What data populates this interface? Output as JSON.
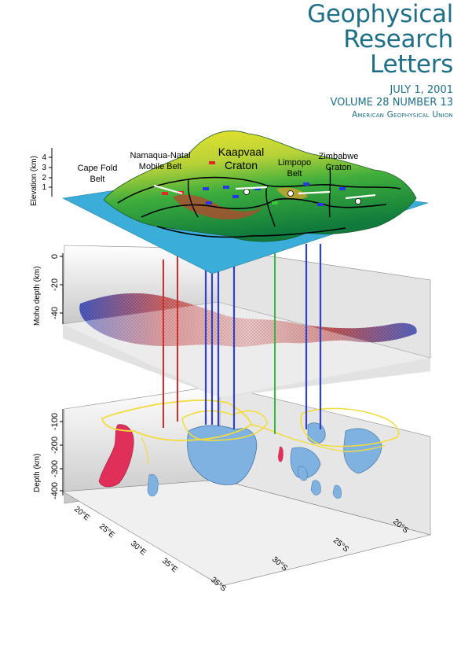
{
  "journal": {
    "title_lines": [
      "Geophysical",
      "Research",
      "Letters"
    ],
    "date": "JULY 1, 2001",
    "volume": "VOLUME 28  NUMBER 13",
    "publisher": "American Geophysical Union"
  },
  "figure": {
    "regions": {
      "cape_fold": [
        "Cape Fold",
        "Belt"
      ],
      "namaqua": [
        "Namaqua-Natal",
        "Mobile Belt"
      ],
      "kaapvaal": [
        "Kaapvaal",
        "Craton"
      ],
      "limpopo": [
        "Limpopo",
        "Belt"
      ],
      "zimbabwe": [
        "Zimbabwe",
        "Craton"
      ]
    },
    "elevation_panel": {
      "axis_label": "Elevation (km)",
      "ticks": [
        "1",
        "2",
        "3",
        "4"
      ]
    },
    "moho_panel": {
      "axis_label": "Moho depth (km)",
      "ticks": [
        "0",
        "-20",
        "-40"
      ]
    },
    "tomography_panel": {
      "axis_label": "Depth (km)",
      "ticks": [
        "-100",
        "-200",
        "-300",
        "-400"
      ]
    },
    "lon_ticks": [
      "20°E",
      "25°E",
      "30°E",
      "35°E"
    ],
    "lat_ticks": [
      "35°S",
      "30°S",
      "25°S",
      "20°S"
    ],
    "colors": {
      "sea": "#3aaed8",
      "anomaly_slow": "#e0305a",
      "anomaly_fast": "#7fb2e0",
      "outline": "#f3dc3a",
      "masthead": "#1f6f86"
    }
  }
}
